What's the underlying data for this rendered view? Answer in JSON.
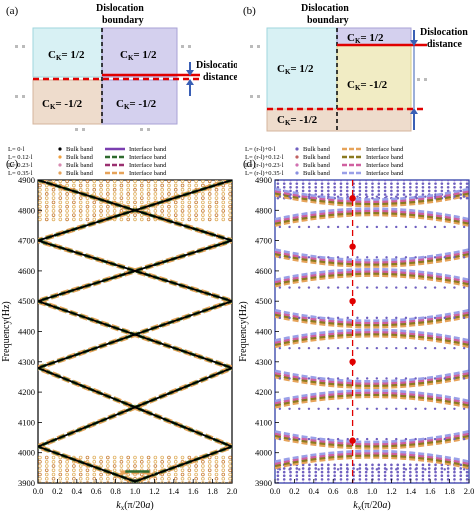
{
  "panel_a": {
    "label": "(a)",
    "boundary_line1": "Dislocation",
    "boundary_line2": "boundary",
    "distance_line1": "Dislocation",
    "distance_line2": "distance",
    "ck_tl": "C",
    "ck_tl_sub": "K",
    "ck_tl_val": "= 1/2",
    "ck_tr_val": "= 1/2",
    "ck_bl_val": "= -1/2",
    "ck_br_val": "= -1/2",
    "colors": {
      "cyan_region": "#d8f1f4",
      "purple_region": "#d4d0ee",
      "tan_region": "#eedccc",
      "red_line": "#e00000",
      "arrow": "#3a5fb5"
    }
  },
  "panel_b": {
    "label": "(b)",
    "boundary_line1": "Dislocation",
    "boundary_line2": "boundary",
    "distance_line1": "Dislocation",
    "distance_line2": "distance",
    "ck_top_val": "= 1/2",
    "ck_left_val": "= 1/2",
    "ck_right_val": "= -1/2",
    "ck_bottom_val": "= -1/2"
  },
  "chart_data": [
    {
      "type": "line",
      "panel_label": "(c)",
      "xlabel": "k_x(π/20a)",
      "ylabel": "Frequency(Hz)",
      "xlim": [
        0.0,
        2.0
      ],
      "ylim": [
        3900,
        4900
      ],
      "xticks": [
        "0.0",
        "0.2",
        "0.4",
        "0.6",
        "0.8",
        "1.0",
        "1.2",
        "1.4",
        "1.6",
        "1.8",
        "2.0"
      ],
      "yticks": [
        "3900",
        "4000",
        "4100",
        "4200",
        "4300",
        "4400",
        "4500",
        "4600",
        "4700",
        "4800",
        "4900"
      ],
      "legend": [
        {
          "l": "L= 0·l",
          "bulk": "Bulk band",
          "iface": "Interface band"
        },
        {
          "l": "L= 0.12·l",
          "bulk": "Bulk band",
          "iface": "Interface band"
        },
        {
          "l": "L= 0.23·l",
          "bulk": "Bulk band",
          "iface": "Interface band"
        },
        {
          "l": "L= 0.35·l",
          "bulk": "Bulk band",
          "iface": "Interface band"
        }
      ],
      "series": [
        {
          "name": "Interface band (L=0·l)",
          "color": "#000000",
          "lines": [
            {
              "x": [
                0.0,
                2.0
              ],
              "y": [
                4900,
                3915
              ]
            },
            {
              "x": [
                0.0,
                2.0
              ],
              "y": [
                3915,
                4900
              ]
            },
            {
              "x": [
                0.0,
                0.4
              ],
              "y": [
                4700,
                4500
              ]
            },
            {
              "x": [
                0.0,
                2.0
              ],
              "y": [
                4510,
                3530
              ]
            }
          ]
        }
      ],
      "interface_vertices_y": [
        4020,
        4280,
        4500,
        4700,
        4870
      ],
      "bulk_band_regions": [
        [
          3900,
          3990
        ],
        [
          4770,
          4900
        ]
      ]
    },
    {
      "type": "line",
      "panel_label": "(d)",
      "xlabel": "k_x(π/20a)",
      "ylabel": "Frequency(Hz)",
      "xlim": [
        0.0,
        2.0
      ],
      "ylim": [
        3900,
        4900
      ],
      "xticks": [
        "0.0",
        "0.2",
        "0.4",
        "0.6",
        "0.8",
        "1.0",
        "1.2",
        "1.4",
        "1.6",
        "1.8",
        "2.0"
      ],
      "yticks": [
        "3900",
        "4000",
        "4100",
        "4200",
        "4300",
        "4400",
        "4500",
        "4600",
        "4700",
        "4800",
        "4900"
      ],
      "legend": [
        {
          "l": "L= (r-l)+0·l",
          "bulk": "Bulk band",
          "iface": "Interface band"
        },
        {
          "l": "L= (r-l)+0.12·l",
          "bulk": "Bulk band",
          "iface": "Interface band"
        },
        {
          "l": "L= (r-l)+0.23·l",
          "bulk": "Bulk band",
          "iface": "Interface band"
        },
        {
          "l": "L= (r-l)+0.35·l",
          "bulk": "Bulk band",
          "iface": "Interface band"
        }
      ],
      "vertical_marker_x": 0.8,
      "marker_points_y": [
        4040,
        4300,
        4500,
        4680,
        4840
      ],
      "gap_levels": [
        4000,
        4100,
        4200,
        4300,
        4400,
        4500,
        4600,
        4700,
        4800,
        4900
      ]
    }
  ]
}
